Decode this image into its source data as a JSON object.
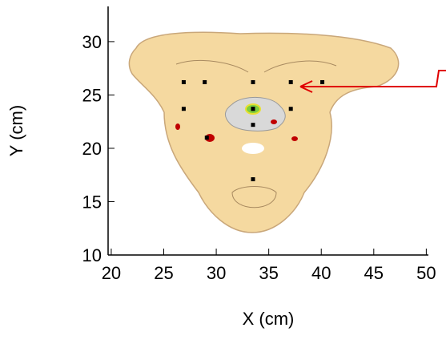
{
  "chart_data": {
    "type": "scatter",
    "xlabel": "X (cm)",
    "ylabel": "Y (cm)",
    "x": [
      26.9,
      28.9,
      33.5,
      37.1,
      40.1,
      26.9,
      33.5,
      37.1,
      33.5,
      33.5,
      29.1,
      33.5
    ],
    "values": [
      26.2,
      26.2,
      26.2,
      26.2,
      26.2,
      23.7,
      23.7,
      23.7,
      23.7,
      22.2,
      21.0,
      17.1
    ],
    "color": "#000000",
    "xlim": [
      19.7,
      50.2
    ],
    "ylim": [
      10,
      33.3
    ],
    "xticks": [
      20,
      25,
      30,
      35,
      40,
      45,
      50
    ],
    "yticks": [
      10,
      15,
      20,
      25,
      30
    ]
  }
}
